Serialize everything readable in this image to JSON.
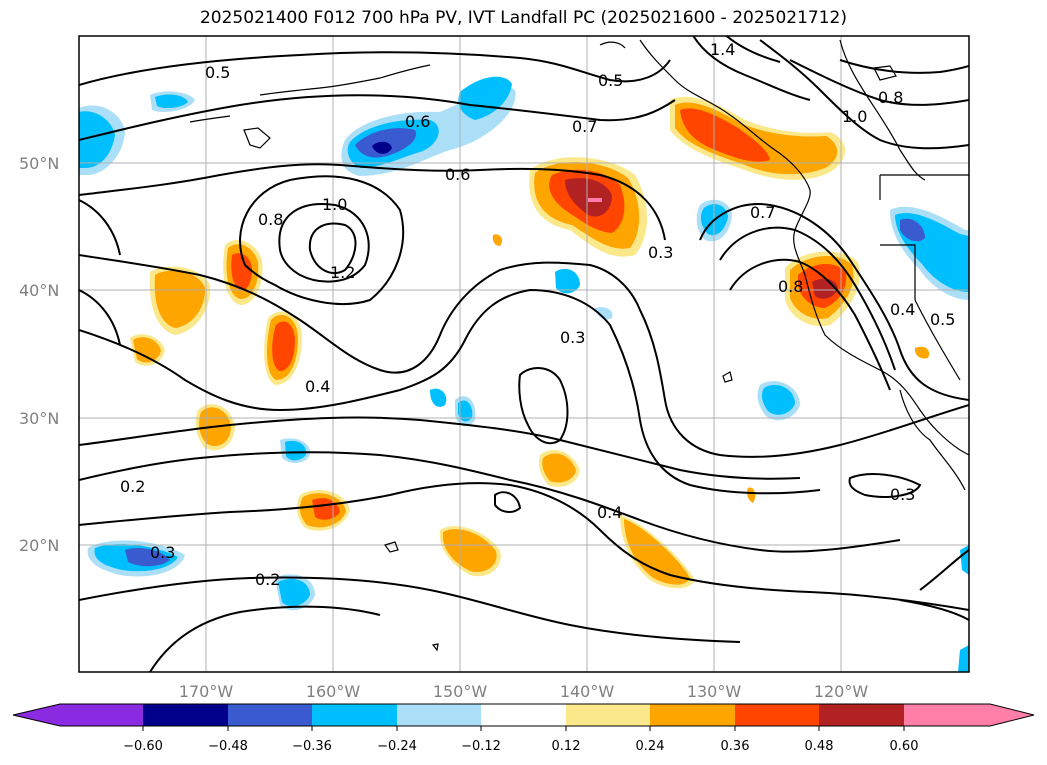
{
  "title": "2025021400 F012 700 hPa PV, IVT Landfall PC (2025021600 - 2025021712)",
  "map": {
    "lon_range": [
      "180°",
      "110°W"
    ],
    "lat_range": [
      "10°N",
      "60°N"
    ],
    "lat_ticks": [
      "50°N",
      "40°N",
      "30°N",
      "20°N"
    ],
    "lon_ticks": [
      "170°W",
      "160°W",
      "150°W",
      "140°W",
      "130°W",
      "120°W"
    ],
    "grid": true
  },
  "contour_labels": [
    "0.5",
    "0.6",
    "0.8",
    "1.0",
    "1.2",
    "1.4",
    "0.7",
    "0.3",
    "0.4",
    "0.2",
    "1.0",
    "0.8",
    "0.6",
    "0.5",
    "0.3",
    "0.4",
    "0.2",
    "0.3",
    "0.8",
    "0.7",
    "0.4",
    "0.5",
    "0.3"
  ],
  "colorbar": {
    "colors": [
      "#8a2be2",
      "#00008b",
      "#3a5bd0",
      "#00bfff",
      "#aadff7",
      "#ffffff",
      "#fbe88a",
      "#ffa500",
      "#ff4500",
      "#b22222",
      "#ff7fa8"
    ],
    "labels": [
      "−0.60",
      "−0.48",
      "−0.36",
      "−0.24",
      "−0.12",
      "0.12",
      "0.24",
      "0.36",
      "0.48",
      "0.60"
    ],
    "extend": "both"
  }
}
